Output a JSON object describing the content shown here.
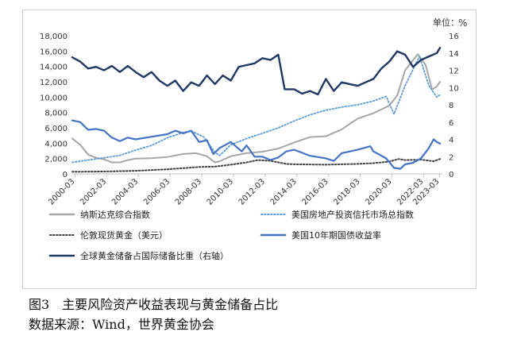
{
  "figure": {
    "caption": "图3　主要风险资产收益表现与黄金储备占比",
    "source": "数据来源：Wind，世界黄金协会"
  },
  "chart_data": {
    "type": "line",
    "unit_label": "单位：",
    "right_unit": "%",
    "x_ticks": [
      "2000-03",
      "2002-03",
      "2004-03",
      "2006-03",
      "2008-03",
      "2010-03",
      "2012-03",
      "2014-03",
      "2016-03",
      "2018-03",
      "2020-03",
      "2022-03",
      "2023-03"
    ],
    "x_tick_years": [
      2000.17,
      2002.17,
      2004.17,
      2006.17,
      2008.17,
      2010.17,
      2012.17,
      2014.17,
      2016.17,
      2018.17,
      2020.17,
      2022.17,
      2023.17
    ],
    "xlim": [
      2000.0,
      2023.35
    ],
    "left_ylim": [
      0,
      18000
    ],
    "left_ticks": [
      "0",
      "2,000",
      "4,000",
      "6,000",
      "8,000",
      "10,000",
      "12,000",
      "14,000",
      "16,000",
      "18,000"
    ],
    "left_tick_values": [
      0,
      2000,
      4000,
      6000,
      8000,
      10000,
      12000,
      14000,
      16000,
      18000
    ],
    "right_ylim": [
      0,
      16
    ],
    "right_ticks": [
      "0",
      "2",
      "4",
      "6",
      "8",
      "10",
      "12",
      "14",
      "16"
    ],
    "right_tick_values": [
      0,
      2,
      4,
      6,
      8,
      10,
      12,
      14,
      16
    ],
    "legend_position": "bottom",
    "series": [
      {
        "name": "纳斯达克综合指数",
        "axis": "left",
        "color": "#a6a6a6",
        "style": "solid",
        "x": [
          2000.0,
          2000.5,
          2001.0,
          2001.5,
          2002.0,
          2002.5,
          2003.0,
          2003.5,
          2004.0,
          2005.0,
          2006.0,
          2007.0,
          2007.8,
          2008.5,
          2009.0,
          2009.3,
          2010.0,
          2011.0,
          2012.0,
          2013.0,
          2014.0,
          2015.0,
          2016.0,
          2017.0,
          2018.0,
          2019.0,
          2020.0,
          2020.5,
          2021.0,
          2021.8,
          2022.3,
          2022.7,
          2023.0,
          2023.2
        ],
        "y": [
          4600,
          3800,
          2500,
          2100,
          1900,
          1500,
          1500,
          1800,
          2000,
          2050,
          2200,
          2600,
          2700,
          2300,
          1500,
          1650,
          2300,
          2700,
          2900,
          3300,
          4100,
          4800,
          4900,
          5800,
          7200,
          7900,
          8900,
          10200,
          13500,
          15600,
          14200,
          11000,
          11400,
          12000
        ]
      },
      {
        "name": "美国房地产投资信托市场总指数",
        "axis": "left",
        "color": "#5b9bd5",
        "style": "dotted",
        "x": [
          2000.0,
          2001.0,
          2002.0,
          2003.0,
          2004.0,
          2005.0,
          2006.0,
          2007.0,
          2007.5,
          2008.3,
          2009.0,
          2009.3,
          2010.0,
          2011.0,
          2012.0,
          2013.0,
          2014.0,
          2015.0,
          2016.0,
          2017.0,
          2018.0,
          2019.0,
          2019.8,
          2020.3,
          2021.0,
          2021.9,
          2022.5,
          2023.0,
          2023.2
        ],
        "y": [
          1500,
          1800,
          2100,
          2400,
          3100,
          3700,
          4700,
          5400,
          5600,
          4800,
          2800,
          2400,
          3800,
          4600,
          5300,
          6000,
          6900,
          7700,
          8300,
          8700,
          9000,
          9500,
          10100,
          7800,
          11500,
          15300,
          11500,
          10000,
          10300
        ]
      },
      {
        "name": "伦敦现货黄金（美元）",
        "axis": "left",
        "color": "#404040",
        "style": "dotted",
        "x": [
          2000.0,
          2002.0,
          2004.0,
          2006.0,
          2008.0,
          2009.0,
          2010.0,
          2011.0,
          2011.7,
          2012.5,
          2013.5,
          2014.0,
          2016.0,
          2018.0,
          2019.0,
          2020.0,
          2020.6,
          2021.0,
          2022.0,
          2022.8,
          2023.2
        ],
        "y": [
          280,
          310,
          400,
          600,
          900,
          950,
          1200,
          1500,
          1800,
          1700,
          1300,
          1250,
          1200,
          1300,
          1400,
          1600,
          1950,
          1800,
          1850,
          1650,
          1950
        ]
      },
      {
        "name": "美国10年期国债收益率",
        "axis": "right",
        "color": "#4472c4",
        "style": "solid",
        "x": [
          2000.0,
          2000.5,
          2001.0,
          2001.5,
          2002.0,
          2002.5,
          2003.0,
          2003.5,
          2004.0,
          2005.0,
          2006.0,
          2006.5,
          2007.0,
          2007.5,
          2008.0,
          2008.5,
          2008.9,
          2009.3,
          2010.0,
          2010.7,
          2011.0,
          2011.5,
          2012.0,
          2012.5,
          2013.0,
          2013.5,
          2014.0,
          2015.0,
          2016.0,
          2016.5,
          2017.0,
          2018.0,
          2018.8,
          2019.0,
          2019.8,
          2020.3,
          2020.7,
          2021.0,
          2021.5,
          2022.0,
          2022.5,
          2022.8,
          2023.0,
          2023.2
        ],
        "y": [
          6.2,
          6.0,
          5.1,
          5.2,
          5.0,
          4.2,
          3.8,
          4.2,
          4.0,
          4.3,
          4.6,
          5.0,
          4.7,
          5.0,
          3.7,
          3.9,
          2.3,
          3.0,
          3.7,
          2.6,
          3.3,
          2.0,
          2.0,
          1.6,
          1.9,
          2.6,
          2.8,
          2.1,
          1.8,
          1.5,
          2.4,
          2.8,
          3.2,
          2.6,
          1.8,
          0.7,
          0.6,
          1.1,
          1.3,
          1.8,
          3.0,
          4.0,
          3.7,
          3.5
        ]
      },
      {
        "name": "全球黄金储备占国际储备比重（右轴）",
        "axis": "right",
        "color": "#203864",
        "style": "solid",
        "x": [
          2000.0,
          2000.5,
          2001.0,
          2001.5,
          2002.0,
          2002.5,
          2003.0,
          2003.5,
          2004.0,
          2004.5,
          2005.0,
          2005.5,
          2006.0,
          2006.5,
          2007.0,
          2007.5,
          2008.0,
          2008.5,
          2009.0,
          2009.5,
          2010.0,
          2010.5,
          2011.0,
          2011.5,
          2012.0,
          2012.5,
          2013.0,
          2013.4,
          2014.0,
          2014.5,
          2015.0,
          2015.5,
          2016.0,
          2016.5,
          2017.0,
          2017.5,
          2018.0,
          2018.5,
          2019.0,
          2019.5,
          2020.0,
          2020.5,
          2021.0,
          2021.5,
          2022.0,
          2022.5,
          2023.0,
          2023.2
        ],
        "y": [
          13.5,
          13.0,
          12.2,
          12.4,
          12.0,
          12.5,
          11.8,
          12.5,
          11.8,
          11.2,
          11.8,
          10.8,
          10.2,
          10.8,
          9.6,
          10.6,
          10.2,
          11.4,
          10.4,
          11.4,
          10.8,
          12.4,
          12.6,
          12.8,
          13.4,
          13.2,
          13.8,
          9.8,
          9.8,
          9.3,
          9.6,
          9.2,
          11.0,
          9.6,
          10.6,
          10.4,
          10.2,
          10.6,
          11.0,
          12.2,
          13.0,
          14.2,
          13.8,
          12.4,
          13.2,
          13.6,
          14.0,
          14.6
        ]
      }
    ]
  }
}
